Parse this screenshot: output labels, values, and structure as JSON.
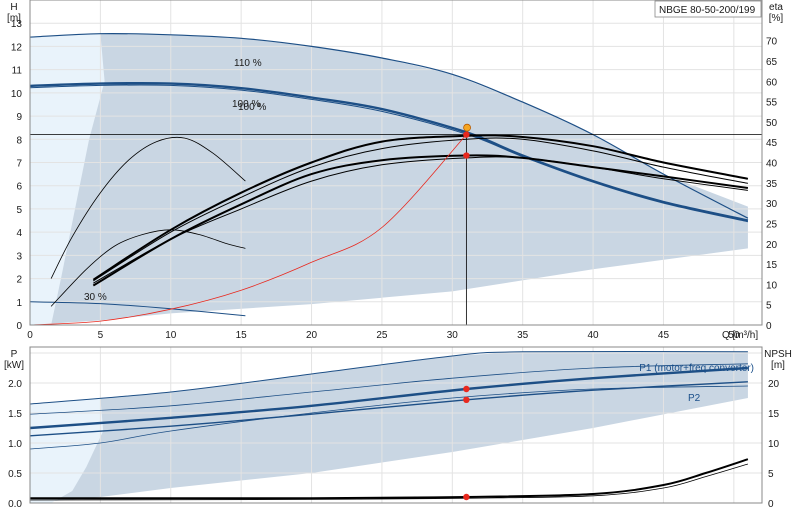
{
  "chart_data": [
    {
      "type": "line",
      "title": "NBGE 80-50-200/199",
      "xlabel": "Q [m³/h]",
      "ylabel": "H\n[m]",
      "ylabel_right": "eta\n[%]",
      "xlim": [
        0,
        52
      ],
      "ylim": [
        0,
        14
      ],
      "ylim_right": [
        0,
        80
      ],
      "xticks": [
        "0",
        "5",
        "10",
        "15",
        "20",
        "25",
        "30",
        "35",
        "40",
        "45",
        "50"
      ],
      "yticks": [
        "0",
        "1",
        "2",
        "3",
        "4",
        "5",
        "6",
        "7",
        "8",
        "9",
        "10",
        "11",
        "12",
        "13"
      ],
      "yticks_right": [
        "0",
        "5",
        "10",
        "15",
        "20",
        "25",
        "30",
        "35",
        "40",
        "45",
        "50",
        "55",
        "60",
        "65",
        "70"
      ],
      "grid": true,
      "colors": {
        "envelope": "#c9d6e3",
        "light_zone": "#e9f3fb",
        "curve": "#1d4f86",
        "efficiency": "#000000",
        "system": "#e8281e",
        "operating_point": "#e8281e"
      },
      "annotations": [
        "110 %",
        "100 %",
        "100 %",
        "30 %"
      ],
      "operating_point": {
        "x": 31,
        "y": 8.2
      },
      "series": [
        {
          "values": [
            [
              0,
              12.4
            ],
            [
              5,
              12.55
            ],
            [
              10,
              12.5
            ],
            [
              15,
              12.35
            ],
            [
              20,
              12.0
            ],
            [
              25,
              11.5
            ],
            [
              30,
              10.8
            ],
            [
              35,
              9.6
            ],
            [
              40,
              8.2
            ],
            [
              45,
              6.5
            ],
            [
              51,
              4.6
            ]
          ]
        },
        {
          "values": [
            [
              0,
              10.3
            ],
            [
              5,
              10.4
            ],
            [
              10,
              10.4
            ],
            [
              15,
              10.2
            ],
            [
              20,
              9.8
            ],
            [
              25,
              9.3
            ],
            [
              31,
              8.3
            ],
            [
              35,
              7.3
            ],
            [
              40,
              6.2
            ],
            [
              45,
              5.3
            ],
            [
              51,
              4.5
            ]
          ]
        },
        {
          "values": [
            [
              0,
              10.22
            ],
            [
              5,
              10.32
            ],
            [
              10,
              10.32
            ],
            [
              15,
              10.12
            ],
            [
              20,
              9.72
            ],
            [
              25,
              9.2
            ],
            [
              31,
              8.22
            ],
            [
              35,
              7.25
            ],
            [
              40,
              6.15
            ],
            [
              45,
              5.25
            ],
            [
              51,
              4.45
            ]
          ]
        },
        {
          "values": [
            [
              0,
              1.0
            ],
            [
              5,
              0.92
            ],
            [
              10,
              0.7
            ],
            [
              15.3,
              0.4
            ]
          ]
        },
        {
          "values": [
            [
              4.5,
              1.8
            ],
            [
              10,
              3.7
            ],
            [
              15,
              5.0
            ],
            [
              20,
              6.2
            ],
            [
              25,
              6.9
            ],
            [
              31,
              7.2
            ],
            [
              35,
              7.2
            ],
            [
              40,
              6.8
            ],
            [
              45,
              6.3
            ],
            [
              51,
              5.8
            ]
          ]
        },
        {
          "values": [
            [
              4.5,
              1.7
            ],
            [
              10,
              3.7
            ],
            [
              15,
              5.2
            ],
            [
              20,
              6.5
            ],
            [
              25,
              7.1
            ],
            [
              31,
              7.3
            ],
            [
              35,
              7.2
            ],
            [
              40,
              6.8
            ],
            [
              45,
              6.4
            ],
            [
              51,
              5.9
            ]
          ]
        },
        {
          "values": [
            [
              4.5,
              1.9
            ],
            [
              10,
              4.0
            ],
            [
              15,
              5.5
            ],
            [
              20,
              6.8
            ],
            [
              25,
              7.6
            ],
            [
              31,
              8.0
            ],
            [
              35,
              8.0
            ],
            [
              40,
              7.5
            ],
            [
              45,
              6.8
            ],
            [
              51,
              6.1
            ]
          ]
        },
        {
          "values": [
            [
              4.5,
              1.95
            ],
            [
              10,
              4.1
            ],
            [
              15,
              5.7
            ],
            [
              20,
              7.0
            ],
            [
              25,
              7.9
            ],
            [
              31,
              8.15
            ],
            [
              35,
              8.1
            ],
            [
              40,
              7.7
            ],
            [
              45,
              7.0
            ],
            [
              51,
              6.3
            ]
          ]
        },
        {
          "values": [
            [
              1.5,
              2.0
            ],
            [
              3,
              3.8
            ],
            [
              5,
              5.7
            ],
            [
              7,
              7.1
            ],
            [
              9,
              7.9
            ],
            [
              11,
              8.05
            ],
            [
              13,
              7.4
            ],
            [
              15.3,
              6.2
            ]
          ]
        },
        {
          "values": [
            [
              1.5,
              0.8
            ],
            [
              4,
              2.4
            ],
            [
              6,
              3.4
            ],
            [
              8,
              3.9
            ],
            [
              10,
              4.1
            ],
            [
              12,
              3.9
            ],
            [
              14,
              3.5
            ],
            [
              15.3,
              3.3
            ]
          ]
        },
        {
          "values": [
            [
              0,
              0
            ],
            [
              5,
              0.17
            ],
            [
              10,
              0.68
            ],
            [
              15,
              1.5
            ],
            [
              20,
              2.7
            ],
            [
              25,
              4.2
            ],
            [
              31,
              8.2
            ]
          ]
        }
      ]
    },
    {
      "type": "line",
      "xlabel": "",
      "ylabel": "P\n[kW]",
      "ylabel_right": "NPSH\n[m]",
      "xlim": [
        0,
        52
      ],
      "ylim": [
        0,
        2.6
      ],
      "ylim_right": [
        0,
        26
      ],
      "yticks": [
        "0.0",
        "0.5",
        "1.0",
        "1.5",
        "2.0"
      ],
      "yticks_right": [
        "0",
        "5",
        "10",
        "15",
        "20"
      ],
      "grid": true,
      "legend": [
        "P1 (motor+freq.converter)",
        "P2"
      ],
      "series": [
        {
          "name": "P1 (motor+freq.converter)",
          "values": [
            [
              0,
              1.25
            ],
            [
              10,
              1.42
            ],
            [
              20,
              1.62
            ],
            [
              31,
              1.9
            ],
            [
              40,
              2.08
            ],
            [
              51,
              2.25
            ]
          ]
        },
        {
          "name": "P2",
          "values": [
            [
              0,
              1.12
            ],
            [
              10,
              1.28
            ],
            [
              20,
              1.48
            ],
            [
              31,
              1.72
            ],
            [
              40,
              1.88
            ],
            [
              51,
              2.02
            ]
          ]
        },
        {
          "values": [
            [
              0,
              1.65
            ],
            [
              10,
              1.85
            ],
            [
              20,
              2.15
            ],
            [
              30,
              2.45
            ],
            [
              35,
              2.52
            ],
            [
              51,
              2.52
            ]
          ]
        },
        {
          "values": [
            [
              0,
              1.48
            ],
            [
              10,
              1.62
            ],
            [
              20,
              1.85
            ],
            [
              30,
              2.08
            ],
            [
              40,
              2.25
            ],
            [
              51,
              2.32
            ]
          ]
        },
        {
          "values": [
            [
              0,
              0.9
            ],
            [
              5,
              1.0
            ],
            [
              10,
              1.2
            ],
            [
              20,
              1.5
            ],
            [
              30,
              1.75
            ],
            [
              40,
              1.9
            ],
            [
              51,
              1.95
            ]
          ]
        },
        {
          "values": [
            [
              0,
              0.08
            ],
            [
              20,
              0.08
            ],
            [
              31,
              0.1
            ],
            [
              40,
              0.15
            ],
            [
              45,
              0.3
            ],
            [
              48,
              0.5
            ],
            [
              51,
              0.73
            ]
          ]
        },
        {
          "values": [
            [
              0,
              0.05
            ],
            [
              20,
              0.06
            ],
            [
              31,
              0.08
            ],
            [
              40,
              0.12
            ],
            [
              45,
              0.25
            ],
            [
              48,
              0.44
            ],
            [
              51,
              0.65
            ]
          ]
        }
      ],
      "operating_points": [
        [
          31,
          1.9
        ],
        [
          31,
          1.72
        ],
        [
          31,
          0.1
        ]
      ]
    }
  ]
}
